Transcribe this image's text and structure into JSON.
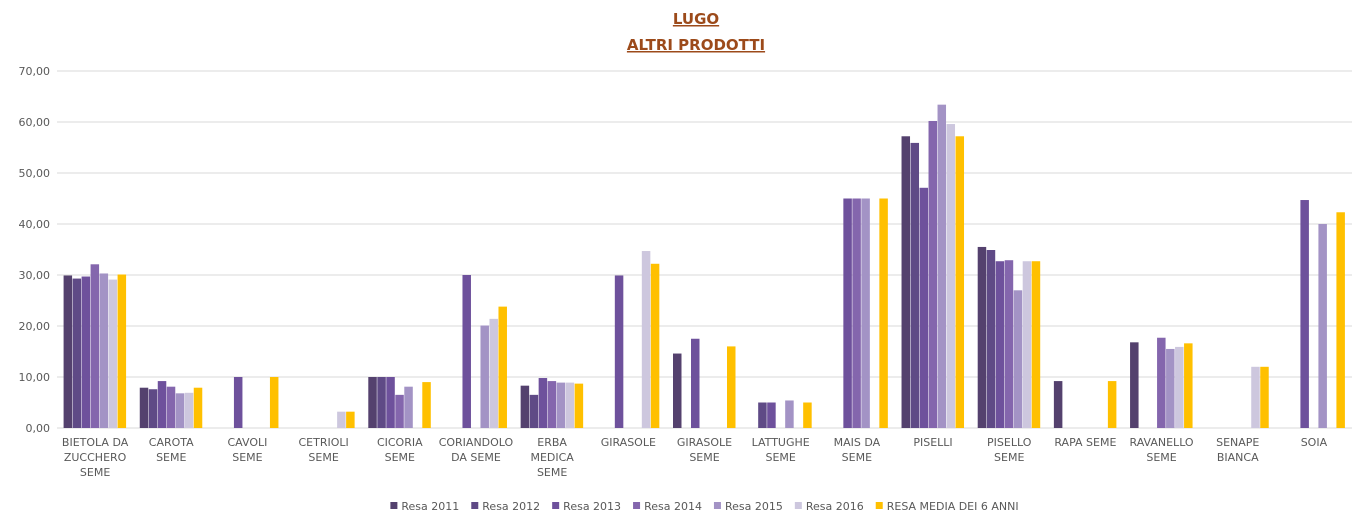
{
  "chart_data": {
    "type": "bar",
    "title": "LUGO",
    "subtitle": "ALTRI PRODOTTI",
    "categories": [
      "BIETOLA DA ZUCCHERO SEME",
      "CAROTA SEME",
      "CAVOLI SEME",
      "CETRIOLI SEME",
      "CICORIA SEME",
      "CORIANDOLO DA SEME",
      "ERBA MEDICA SEME",
      "GIRASOLE",
      "GIRASOLE SEME",
      "LATTUGHE SEME",
      "MAIS DA SEME",
      "PISELLI",
      "PISELLO SEME",
      "RAPA SEME",
      "RAVANELLO SEME",
      "SENAPE BIANCA",
      "SOIA"
    ],
    "series": [
      {
        "name": "Resa 2011",
        "color": "#54416e",
        "values": [
          29.9,
          7.9,
          null,
          null,
          10.0,
          null,
          8.3,
          null,
          14.6,
          null,
          null,
          57.2,
          35.5,
          9.2,
          16.8,
          null,
          null
        ]
      },
      {
        "name": "Resa 2012",
        "color": "#5f4a86",
        "values": [
          29.3,
          7.6,
          null,
          null,
          10.0,
          null,
          6.5,
          null,
          null,
          5.0,
          null,
          55.9,
          34.9,
          null,
          null,
          null,
          null
        ]
      },
      {
        "name": "Resa 2013",
        "color": "#6e519c",
        "values": [
          29.7,
          9.2,
          10.0,
          null,
          10.0,
          30.0,
          9.8,
          29.9,
          17.5,
          5.0,
          45.0,
          47.1,
          32.7,
          null,
          null,
          null,
          44.7
        ]
      },
      {
        "name": "Resa 2014",
        "color": "#8466ad",
        "values": [
          32.1,
          8.1,
          null,
          null,
          6.5,
          null,
          9.2,
          null,
          null,
          null,
          45.0,
          60.2,
          32.9,
          null,
          17.7,
          null,
          null
        ]
      },
      {
        "name": "Resa 2015",
        "color": "#a393c5",
        "values": [
          30.3,
          6.8,
          null,
          null,
          8.1,
          20.1,
          8.9,
          null,
          null,
          5.4,
          45.0,
          63.4,
          27.0,
          null,
          15.5,
          null,
          40.0
        ]
      },
      {
        "name": "Resa 2016",
        "color": "#cdc7de",
        "values": [
          29.1,
          6.9,
          null,
          3.2,
          null,
          21.4,
          8.9,
          34.7,
          null,
          null,
          null,
          59.6,
          32.7,
          null,
          15.9,
          12.0,
          null
        ]
      },
      {
        "name": "RESA MEDIA DEI 6 ANNI",
        "color": "#ffc000",
        "values": [
          30.1,
          7.9,
          10.0,
          3.2,
          9.0,
          23.8,
          8.7,
          32.2,
          16.0,
          5.0,
          45.0,
          57.2,
          32.7,
          9.2,
          16.6,
          12.0,
          42.3
        ]
      }
    ],
    "ylim": [
      0,
      70
    ],
    "yticks": [
      {
        "value": 0,
        "label": "0,00"
      },
      {
        "value": 10,
        "label": "10,00"
      },
      {
        "value": 20,
        "label": "20,00"
      },
      {
        "value": 30,
        "label": "30,00"
      },
      {
        "value": 40,
        "label": "40,00"
      },
      {
        "value": 50,
        "label": "50,00"
      },
      {
        "value": 60,
        "label": "60,00"
      },
      {
        "value": 70,
        "label": "70,00"
      }
    ],
    "grid": true,
    "legend": "bottom"
  }
}
